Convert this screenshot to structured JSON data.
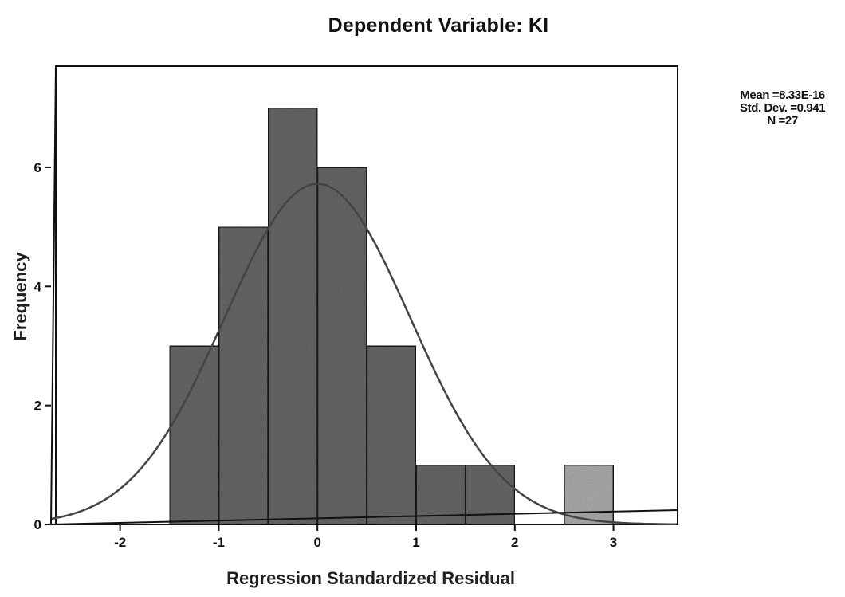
{
  "chart_data": {
    "type": "bar",
    "title": "Dependent Variable: KI",
    "xlabel": "Regression Standardized Residual",
    "ylabel": "Frequency",
    "bins": [
      {
        "from": -1.5,
        "to": -1.0,
        "count": 3
      },
      {
        "from": -1.0,
        "to": -0.5,
        "count": 5
      },
      {
        "from": -0.5,
        "to": 0.0,
        "count": 7
      },
      {
        "from": 0.0,
        "to": 0.5,
        "count": 6
      },
      {
        "from": 0.5,
        "to": 1.0,
        "count": 3
      },
      {
        "from": 1.0,
        "to": 1.5,
        "count": 1
      },
      {
        "from": 1.5,
        "to": 2.0,
        "count": 1
      },
      {
        "from": 2.0,
        "to": 2.5,
        "count": 0
      },
      {
        "from": 2.5,
        "to": 3.0,
        "count": 1
      }
    ],
    "xlim": [
      -2.7,
      3.65
    ],
    "ylim": [
      0,
      7.7
    ],
    "xticks": [
      "-2",
      "-1",
      "0",
      "1",
      "2",
      "3"
    ],
    "yticks": [
      "0",
      "2",
      "4",
      "6"
    ],
    "normal_curve": {
      "mean": 8.33e-16,
      "std": 0.941,
      "n": 27,
      "bin_width": 0.5
    },
    "grid": false,
    "legend": "none"
  },
  "stats": {
    "mean": "Mean =8.33E-16",
    "std": "Std. Dev. =0.941",
    "n": "N =27"
  },
  "colors": {
    "bar_fill": "#6f6f6f",
    "bar_light": "#b9b9b9",
    "curve": "#444444",
    "axis": "#111111"
  }
}
